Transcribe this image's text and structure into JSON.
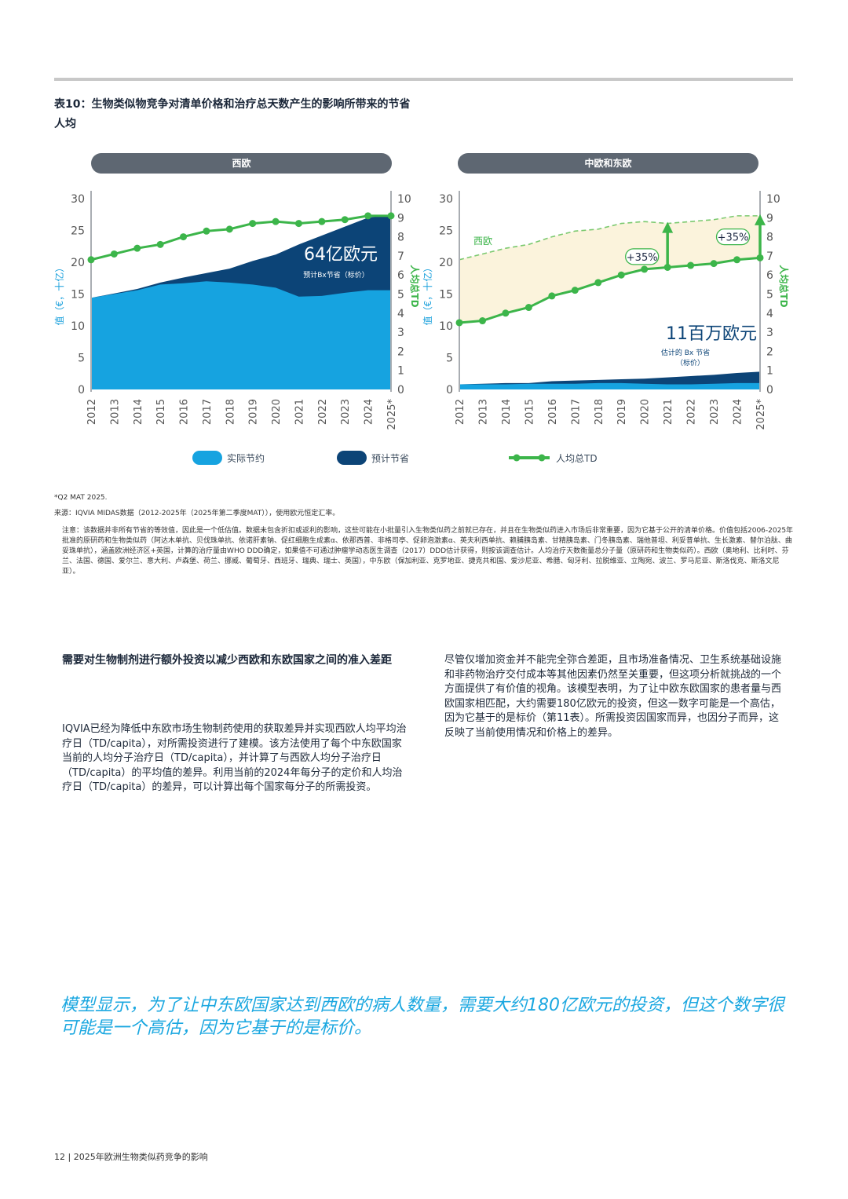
{
  "title_line1": "表10：生物类似物竞争对清单价格和治疗总天数产生的影响所带来的节省",
  "title_line2": "人均",
  "colors": {
    "actual": "#16a3e0",
    "projected": "#0c4477",
    "td_line": "#3cb54a",
    "band": "#fbf3dc",
    "pill": "#5e6772",
    "quote": "#1aa7e0"
  },
  "chart_data": [
    {
      "type": "area",
      "panel_title": "西欧",
      "ylabel": "值（€，十亿）",
      "ylabel2": "人均总TD",
      "x": [
        "2012",
        "2013",
        "2014",
        "2015",
        "2016",
        "2017",
        "2018",
        "2019",
        "2020",
        "2021",
        "2022",
        "2023",
        "2024",
        "2025*"
      ],
      "ylim": [
        0,
        30
      ],
      "yticks": [
        "0",
        "5",
        "10",
        "15",
        "20",
        "25",
        "30"
      ],
      "y2lim": [
        0,
        10
      ],
      "y2ticks": [
        "0",
        "1",
        "2",
        "3",
        "4",
        "5",
        "6",
        "7",
        "8",
        "9",
        "10"
      ],
      "series": [
        {
          "name": "实际节约",
          "values": [
            14.4,
            15.0,
            15.6,
            16.5,
            16.7,
            17.0,
            16.8,
            16.5,
            16.0,
            14.6,
            14.7,
            15.2,
            15.6,
            15.6
          ]
        },
        {
          "name": "预计节省",
          "values": [
            14.4,
            15.1,
            15.8,
            16.8,
            17.6,
            18.3,
            19.0,
            20.2,
            21.2,
            22.8,
            24.2,
            25.6,
            27.0,
            27.5
          ]
        },
        {
          "name": "人均总TD",
          "axis": "y2",
          "values": [
            6.8,
            7.1,
            7.4,
            7.6,
            8.0,
            8.3,
            8.4,
            8.7,
            8.8,
            8.7,
            8.8,
            8.9,
            9.1,
            9.1
          ]
        }
      ],
      "annotation_value": "64亿欧元",
      "annotation_note": "预计Bx节省（标价）"
    },
    {
      "type": "area",
      "panel_title": "中欧和东欧",
      "ylabel": "值（€，十亿）",
      "ylabel2": "人均总TD",
      "x": [
        "2012",
        "2013",
        "2014",
        "2015",
        "2016",
        "2017",
        "2018",
        "2019",
        "2020",
        "2021",
        "2022",
        "2023",
        "2024",
        "2025*"
      ],
      "ylim": [
        0,
        30
      ],
      "yticks": [
        "0",
        "5",
        "10",
        "15",
        "20",
        "25",
        "30"
      ],
      "y2lim": [
        0,
        10
      ],
      "y2ticks": [
        "0",
        "1",
        "2",
        "3",
        "4",
        "5",
        "6",
        "7",
        "8",
        "9",
        "10"
      ],
      "series": [
        {
          "name": "实际节约",
          "values": [
            0.8,
            0.8,
            0.8,
            0.9,
            0.9,
            0.9,
            1.0,
            1.0,
            0.9,
            0.8,
            0.8,
            0.9,
            1.0,
            1.0
          ]
        },
        {
          "name": "预计节省",
          "values": [
            0.8,
            0.9,
            1.0,
            1.0,
            1.3,
            1.4,
            1.5,
            1.6,
            1.7,
            1.9,
            2.1,
            2.3,
            2.6,
            2.8
          ]
        },
        {
          "name": "人均总TD",
          "axis": "y2",
          "values": [
            3.5,
            3.6,
            4.0,
            4.3,
            4.9,
            5.2,
            5.6,
            6.0,
            6.3,
            6.4,
            6.5,
            6.6,
            6.8,
            6.9
          ]
        },
        {
          "name": "西欧",
          "axis": "y2",
          "values": [
            6.8,
            7.1,
            7.4,
            7.6,
            8.0,
            8.3,
            8.4,
            8.7,
            8.8,
            8.7,
            8.8,
            8.9,
            9.1,
            9.1
          ]
        }
      ],
      "gap_labels": [
        "+35%",
        "+35%"
      ],
      "annotation_value": "11百万欧元",
      "annotation_note_line1": "估计的 Bx 节省",
      "annotation_note_line2": "（标价）"
    }
  ],
  "legend": {
    "actual": "实际节约",
    "projected": "预计节省",
    "td": "人均总TD"
  },
  "footnote_1": "*Q2 MAT 2025.",
  "footnote_2": "来源：IQVIA MIDAS数据（2012-2025年（2025年第二季度MAT）），使用欧元恒定汇率。",
  "notes": "注意：该数据并非所有节省的等效值，因此是一个低估值。数据未包含折扣或返利的影响，这些可能在小批量引入生物类似药之前就已存在，并且在生物类似药进入市场后非常重要，因为它基于公开的清单价格。价值包括2006-2025年批准的原研药和生物类似药（阿达木单抗、贝伐珠单抗、依诺肝素钠、促红细胞生成素α、依那西普、非格司亭、促卵泡激素α、英夫利西单抗、赖脯胰岛素、甘精胰岛素、门冬胰岛素、瑞他普坦、利妥昔单抗、生长激素、替尔泊肽、曲妥珠单抗），涵盖欧洲经济区+英国，计算的治疗量由WHO DDD确定，如果值不可通过肿瘤学动态医生调查（2017）DDD估计获得，则按该调查估计。人均治疗天数衡量总分子量（原研药和生物类似药）。西欧（奥地利、比利时、芬兰、法国、德国、爱尔兰、意大利、卢森堡、荷兰、挪威、葡萄牙、西班牙、瑞典、瑞士、英国），中东欧（保加利亚、克罗地亚、捷克共和国、爱沙尼亚、希腊、匈牙利、拉脱维亚、立陶宛、波兰、罗马尼亚、斯洛伐克、斯洛文尼亚）。",
  "section_heading": "需要对生物制剂进行额外投资以减少西欧和东欧国家之间的准入差距",
  "para_left": "IQVIA已经为降低中东欧市场生物制药使用的获取差异并实现西欧人均平均治疗日（TD/capita），对所需投资进行了建模。该方法使用了每个中东欧国家当前的人均分子治疗日（TD/capita），并计算了与西欧人均分子治疗日（TD/capita）的平均值的差异。利用当前的2024年每分子的定价和人均治疗日（TD/capita）的差异，可以计算出每个国家每分子的所需投资。",
  "para_right": "尽管仅增加资金并不能完全弥合差距，且市场准备情况、卫生系统基础设施和非药物治疗交付成本等其他因素仍然至关重要，但这项分析就挑战的一个方面提供了有价值的视角。该模型表明，为了让中欧东欧国家的患者量与西欧国家相匹配，大约需要180亿欧元的投资，但这一数字可能是一个高估，因为它基于的是标价（第11表）。所需投资因国家而异，也因分子而异，这反映了当前使用情况和价格上的差异。",
  "quote": "模型显示，为了让中东欧国家达到西欧的病人数量，需要大约180亿欧元的投资，但这个数字很可能是一个高估，因为它基于的是标价。",
  "footer": "12 | 2025年欧洲生物类似药竞争的影响"
}
